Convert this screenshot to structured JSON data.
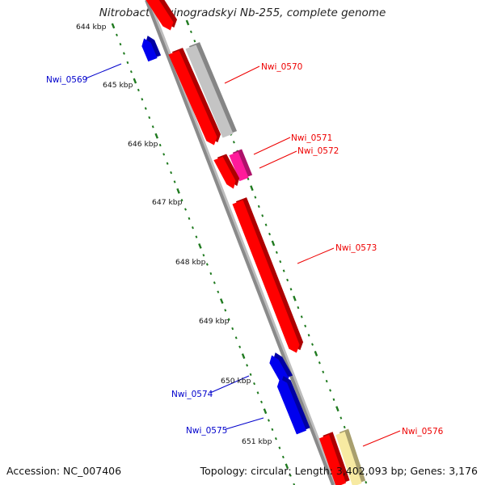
{
  "title": "Nitrobacter winogradskyi Nb-255, complete genome",
  "accession": "Accession: NC_007406",
  "summary": "Topology: circular; Length: 3,402,093 bp; Genes: 3,176",
  "colors": {
    "backbone": "#8a8a8a",
    "tick": "#1f7a1f",
    "forward_gene": "#ff0000",
    "reverse_gene": "#0000ee",
    "forward_label": "#ee0000",
    "reverse_label": "#0000cc",
    "gray_feature": "#c4c4c4",
    "magenta_feature": "#ff1a9a",
    "yellow_feature": "#f7eaa2"
  },
  "scale_labels": [
    "644 kbp",
    "645 kbp",
    "646 kbp",
    "647 kbp",
    "648 kbp",
    "649 kbp",
    "650 kbp",
    "651 kbp"
  ],
  "genes": [
    {
      "label": "Nwi_0569",
      "strand": "reverse"
    },
    {
      "label": "Nwi_0570",
      "strand": "forward"
    },
    {
      "label": "Nwi_0571",
      "strand": "forward"
    },
    {
      "label": "Nwi_0572",
      "strand": "forward"
    },
    {
      "label": "Nwi_0573",
      "strand": "forward"
    },
    {
      "label": "Nwi_0574",
      "strand": "reverse"
    },
    {
      "label": "Nwi_0575",
      "strand": "reverse"
    },
    {
      "label": "Nwi_0576",
      "strand": "forward"
    }
  ]
}
